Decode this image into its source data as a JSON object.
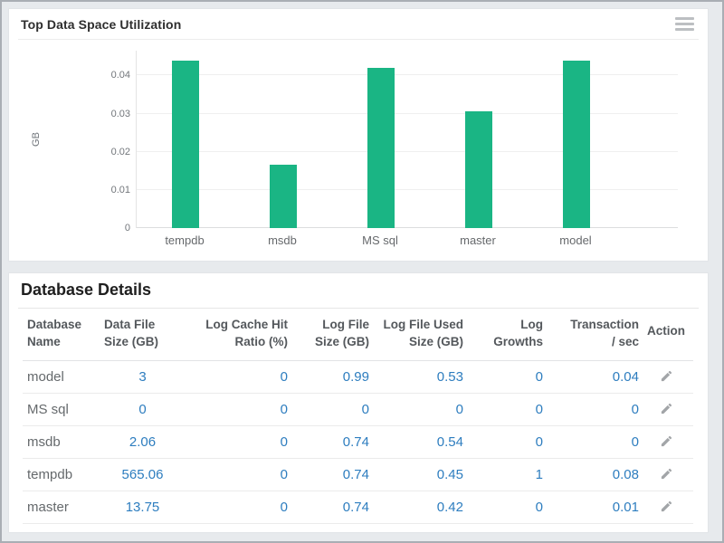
{
  "colors": {
    "bar_green": "#1ab584",
    "link_blue": "#2d7dbf",
    "icon_gray": "#a2a5a8"
  },
  "chart_panel": {
    "title": "Top Data Space Utilization",
    "menu_icon": "hamburger-icon"
  },
  "chart_data": {
    "type": "bar",
    "title": "Top Data Space Utilization",
    "categories": [
      "tempdb",
      "msdb",
      "MS sql",
      "master",
      "model"
    ],
    "values": [
      0.044,
      0.0165,
      0.042,
      0.0305,
      0.044
    ],
    "xlabel": "",
    "ylabel": "GB",
    "ylim": [
      0,
      0.0465
    ],
    "yticks": [
      0,
      0.01,
      0.02,
      0.03,
      0.04
    ],
    "grid": true,
    "legend": "none",
    "bar_color": "#1ab584"
  },
  "table_panel": {
    "title": "Database Details",
    "action_icon": "pencil-icon",
    "columns": [
      {
        "id": "database_name",
        "line1": "Database",
        "line2": "Name",
        "align": "al",
        "value_align": "al"
      },
      {
        "id": "data_file_size",
        "line1": "Data File",
        "line2": "Size (GB)",
        "align": "al",
        "value_align": "ac"
      },
      {
        "id": "log_cache_hit_ratio",
        "line1": "Log Cache Hit",
        "line2": "Ratio (%)",
        "align": "ar",
        "value_align": "ar"
      },
      {
        "id": "log_file_size",
        "line1": "Log File",
        "line2": "Size (GB)",
        "align": "ar",
        "value_align": "ar"
      },
      {
        "id": "log_file_used_size",
        "line1": "Log File Used",
        "line2": "Size (GB)",
        "align": "ar",
        "value_align": "ar"
      },
      {
        "id": "log_growths",
        "line1": "Log",
        "line2": "Growths",
        "align": "ar",
        "value_align": "ar"
      },
      {
        "id": "transaction_per_sec",
        "line1": "Transaction",
        "line2": "/ sec",
        "align": "ar",
        "value_align": "ar"
      },
      {
        "id": "action",
        "line1": "Action",
        "line2": "",
        "align": "ac",
        "value_align": "ac"
      }
    ],
    "rows": [
      {
        "name": "model",
        "values": [
          "3",
          "0",
          "0.99",
          "0.53",
          "0",
          "0.04"
        ]
      },
      {
        "name": "MS sql",
        "values": [
          "0",
          "0",
          "0",
          "0",
          "0",
          "0"
        ]
      },
      {
        "name": "msdb",
        "values": [
          "2.06",
          "0",
          "0.74",
          "0.54",
          "0",
          "0"
        ]
      },
      {
        "name": "tempdb",
        "values": [
          "565.06",
          "0",
          "0.74",
          "0.45",
          "1",
          "0.08"
        ]
      },
      {
        "name": "master",
        "values": [
          "13.75",
          "0",
          "0.74",
          "0.42",
          "0",
          "0.01"
        ]
      }
    ]
  }
}
